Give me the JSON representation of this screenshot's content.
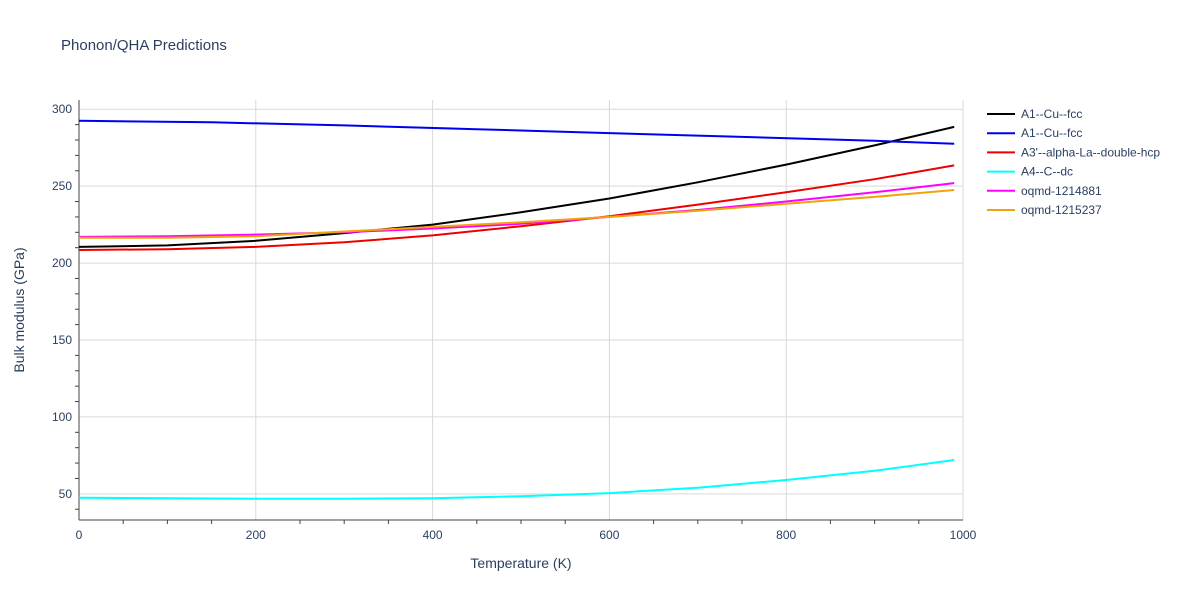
{
  "chart_data": {
    "type": "line",
    "title": "Phonon/QHA Predictions",
    "xlabel": "Temperature (K)",
    "ylabel": "Bulk modulus (GPa)",
    "xlim": [
      0,
      1000
    ],
    "ylim": [
      33,
      306
    ],
    "xticks": [
      0,
      200,
      400,
      600,
      800,
      1000
    ],
    "yticks": [
      50,
      100,
      150,
      200,
      250,
      300
    ],
    "grid": true,
    "legend_position": "right",
    "series": [
      {
        "name": "A1--Cu--fcc",
        "color": "#000000",
        "x": [
          0,
          100,
          200,
          300,
          400,
          500,
          600,
          700,
          800,
          900,
          990
        ],
        "y": [
          210.5,
          211.5,
          214.5,
          219.5,
          225,
          233,
          242,
          252.5,
          264,
          276.5,
          288.5
        ]
      },
      {
        "name": "A1--Cu--fcc",
        "color": "#0000ee",
        "x": [
          0,
          150,
          300,
          450,
          600,
          750,
          900,
          990
        ],
        "y": [
          292.5,
          291.5,
          289.5,
          287,
          284.5,
          282,
          279.5,
          277.5
        ]
      },
      {
        "name": "A3'--alpha-La--double-hcp",
        "color": "#ee0000",
        "x": [
          0,
          100,
          200,
          300,
          400,
          500,
          600,
          700,
          800,
          900,
          990
        ],
        "y": [
          208.5,
          209,
          210.5,
          213.5,
          218,
          224,
          230.5,
          238,
          246,
          254.5,
          263.5
        ]
      },
      {
        "name": "A4--C--dc",
        "color": "#00ffff",
        "x": [
          0,
          100,
          200,
          300,
          400,
          500,
          600,
          700,
          800,
          900,
          990
        ],
        "y": [
          47.5,
          47.2,
          46.8,
          46.8,
          47.2,
          48.5,
          50.5,
          54,
          59,
          65,
          72
        ]
      },
      {
        "name": "oqmd-1214881",
        "color": "#ff00ff",
        "x": [
          0,
          100,
          200,
          300,
          400,
          500,
          600,
          700,
          800,
          900,
          990
        ],
        "y": [
          217,
          217.5,
          218.5,
          220,
          222.5,
          225.5,
          230,
          234.5,
          240,
          246,
          252
        ]
      },
      {
        "name": "oqmd-1215237",
        "color": "#f0a30a",
        "x": [
          0,
          100,
          200,
          300,
          400,
          500,
          600,
          700,
          800,
          900,
          990
        ],
        "y": [
          216.5,
          216.5,
          217.5,
          220.5,
          223.5,
          226.5,
          230,
          234,
          238.5,
          243,
          247.5
        ]
      }
    ]
  }
}
